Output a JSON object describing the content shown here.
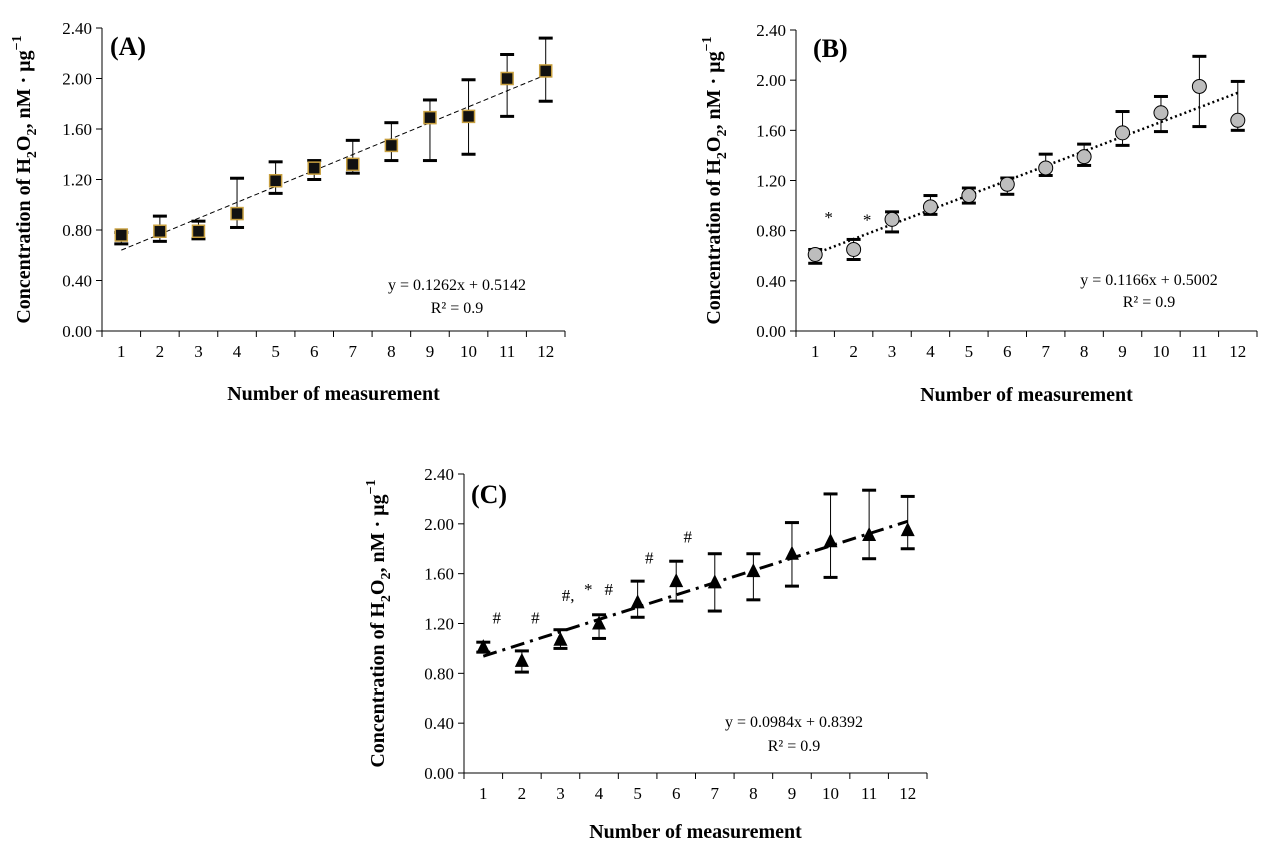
{
  "figure": {
    "panels": [
      "A",
      "B",
      "C"
    ]
  },
  "chart_data": [
    {
      "type": "scatter",
      "panel_label": "(A)",
      "xlabel": "Number of measurement",
      "ylabel_prefix": "Concentration of H",
      "ylabel_sub": "2",
      "ylabel_mid": "O",
      "ylabel_sub2": "2",
      "ylabel_suffix": ", nM · µg",
      "ylabel_sup": "−1",
      "x": [
        1,
        2,
        3,
        4,
        5,
        6,
        7,
        8,
        9,
        10,
        11,
        12
      ],
      "xticks": [
        "1",
        "2",
        "3",
        "4",
        "5",
        "6",
        "7",
        "8",
        "9",
        "10",
        "11",
        "12"
      ],
      "ylim": [
        0,
        2.4
      ],
      "yticks": [
        "0.00",
        "0.40",
        "0.80",
        "1.20",
        "1.60",
        "2.00",
        "2.40"
      ],
      "series": [
        {
          "marker": "square",
          "marker_fill": "#111111",
          "marker_edge": "#c8a040",
          "values": [
            0.76,
            0.79,
            0.79,
            0.93,
            1.19,
            1.29,
            1.32,
            1.47,
            1.69,
            1.7,
            2.0,
            2.06
          ],
          "err_upper": [
            0.78,
            0.91,
            0.87,
            1.21,
            1.34,
            1.35,
            1.51,
            1.65,
            1.83,
            1.99,
            2.19,
            2.32
          ],
          "err_lower": [
            0.69,
            0.71,
            0.73,
            0.82,
            1.09,
            1.2,
            1.25,
            1.35,
            1.35,
            1.4,
            1.7,
            1.82
          ]
        }
      ],
      "trendline": {
        "slope": 0.1262,
        "intercept": 0.5142,
        "style": "dashed-fine"
      },
      "equation": "y = 0.1262x + 0.5142",
      "r2": "R² = 0.9",
      "annotations": []
    },
    {
      "type": "scatter",
      "panel_label": "(B)",
      "xlabel": "Number of measurement",
      "ylabel_prefix": "Concentration of H",
      "ylabel_sub": "2",
      "ylabel_mid": "O",
      "ylabel_sub2": "2",
      "ylabel_suffix": ", nM · µg",
      "ylabel_sup": "−1",
      "x": [
        1,
        2,
        3,
        4,
        5,
        6,
        7,
        8,
        9,
        10,
        11,
        12
      ],
      "xticks": [
        "1",
        "2",
        "3",
        "4",
        "5",
        "6",
        "7",
        "8",
        "9",
        "10",
        "11",
        "12"
      ],
      "ylim": [
        0,
        2.4
      ],
      "yticks": [
        "0.00",
        "0.40",
        "0.80",
        "1.20",
        "1.60",
        "2.00",
        "2.40"
      ],
      "series": [
        {
          "marker": "circle",
          "marker_fill": "#bdbdbd",
          "marker_edge": "#000000",
          "values": [
            0.61,
            0.65,
            0.89,
            0.99,
            1.08,
            1.17,
            1.3,
            1.39,
            1.58,
            1.74,
            1.95,
            1.68
          ],
          "err_upper": [
            0.65,
            0.73,
            0.95,
            1.08,
            1.14,
            1.22,
            1.41,
            1.49,
            1.75,
            1.87,
            2.19,
            1.99
          ],
          "err_lower": [
            0.54,
            0.57,
            0.79,
            0.93,
            1.02,
            1.09,
            1.24,
            1.32,
            1.48,
            1.59,
            1.63,
            1.6
          ]
        }
      ],
      "trendline": {
        "slope": 0.1166,
        "intercept": 0.5002,
        "style": "dotted"
      },
      "equation": "y = 0.1166x + 0.5002",
      "r2": "R² = 0.9",
      "annotations": [
        {
          "text": "*",
          "x": 1.35,
          "y": 0.86
        },
        {
          "text": "*",
          "x": 2.35,
          "y": 0.84
        }
      ]
    },
    {
      "type": "scatter",
      "panel_label": "(C)",
      "xlabel": "Number of measurement",
      "ylabel_prefix": "Concentration of H",
      "ylabel_sub": "2",
      "ylabel_mid": "O",
      "ylabel_sub2": "2",
      "ylabel_suffix": ", nM · µg",
      "ylabel_sup": "−1",
      "x": [
        1,
        2,
        3,
        4,
        5,
        6,
        7,
        8,
        9,
        10,
        11,
        12
      ],
      "xticks": [
        "1",
        "2",
        "3",
        "4",
        "5",
        "6",
        "7",
        "8",
        "9",
        "10",
        "11",
        "12"
      ],
      "ylim": [
        0,
        2.4
      ],
      "yticks": [
        "0.00",
        "0.40",
        "0.80",
        "1.20",
        "1.60",
        "2.00",
        "2.40"
      ],
      "series": [
        {
          "marker": "triangle",
          "marker_fill": "#000000",
          "marker_edge": "#000000",
          "values": [
            1.01,
            0.9,
            1.07,
            1.2,
            1.37,
            1.54,
            1.53,
            1.62,
            1.76,
            1.86,
            1.91,
            1.95
          ],
          "err_upper": [
            1.05,
            0.98,
            1.15,
            1.27,
            1.54,
            1.7,
            1.76,
            1.76,
            2.01,
            2.24,
            2.27,
            2.22
          ],
          "err_lower": [
            0.97,
            0.81,
            1.0,
            1.08,
            1.25,
            1.38,
            1.3,
            1.39,
            1.5,
            1.57,
            1.72,
            1.8
          ]
        }
      ],
      "trendline": {
        "slope": 0.0984,
        "intercept": 0.8392,
        "style": "dash-dot"
      },
      "equation": "y = 0.0984x + 0.8392",
      "r2": "R² = 0.9",
      "annotations": [
        {
          "text": "#",
          "x": 1.35,
          "y": 1.2
        },
        {
          "text": "#",
          "x": 2.35,
          "y": 1.2
        },
        {
          "text": "#,",
          "x": 3.2,
          "y": 1.38
        },
        {
          "text": "*",
          "x": 3.72,
          "y": 1.43
        },
        {
          "text": "#",
          "x": 4.25,
          "y": 1.43
        },
        {
          "text": "#",
          "x": 5.3,
          "y": 1.68
        },
        {
          "text": "#",
          "x": 6.3,
          "y": 1.85
        }
      ]
    }
  ]
}
